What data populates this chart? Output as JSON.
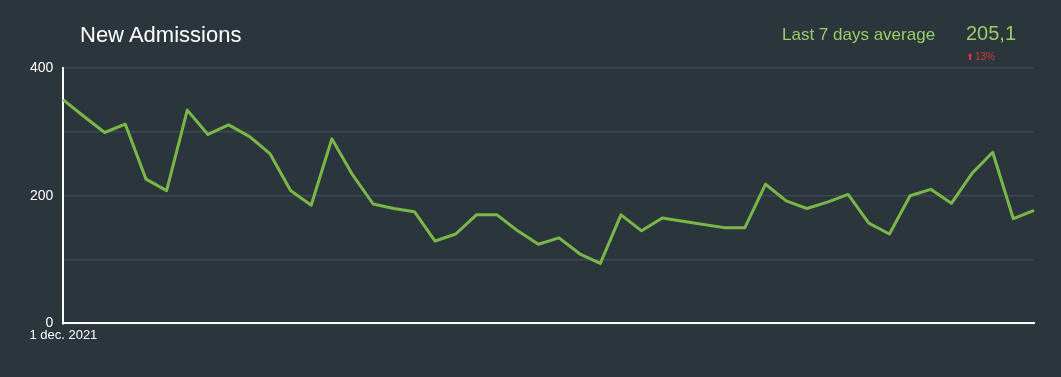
{
  "chart_data": {
    "type": "line",
    "title": "New Admissions",
    "categories": [
      "1 dec. 2021",
      null,
      null,
      null,
      null,
      null,
      null,
      null,
      null,
      null,
      null,
      null,
      null,
      null,
      null,
      null,
      null,
      null,
      null,
      null,
      null,
      null,
      null,
      null,
      null,
      null,
      null,
      null,
      null,
      null,
      null,
      null,
      null,
      null,
      null,
      null,
      null,
      null,
      null,
      null,
      null,
      null,
      null,
      null,
      null,
      null,
      null,
      null
    ],
    "series": [
      {
        "color": "#7ab648",
        "values": [
          350,
          324,
          299,
          312,
          226,
          208,
          334,
          296,
          311,
          293,
          266,
          208,
          185,
          289,
          233,
          187,
          180,
          175,
          129,
          140,
          170,
          170,
          145,
          124,
          134,
          109,
          94,
          170,
          145,
          165,
          160,
          155,
          150,
          150,
          218,
          192,
          180,
          190,
          202,
          157,
          140,
          200,
          210,
          188,
          235,
          268,
          164,
          177
        ]
      }
    ],
    "ylim": [
      0,
      400
    ],
    "yticks": [
      0,
      {
        "value": 100,
        "label": null
      },
      200,
      {
        "value": 300,
        "label": null
      },
      400
    ],
    "grid": "y",
    "legend": false,
    "marker": "none",
    "line_style": "solid",
    "annotations": [
      "Last 7 days average",
      "205,1",
      "13%"
    ]
  }
}
